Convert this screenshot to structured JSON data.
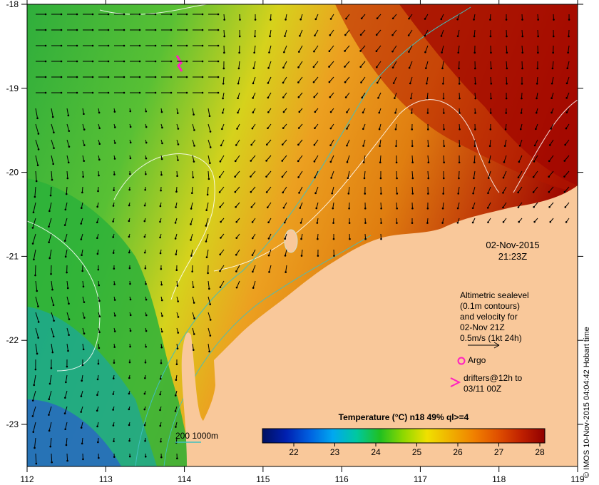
{
  "map": {
    "x_ticks": [
      "112",
      "113",
      "114",
      "115",
      "116",
      "117",
      "118",
      "119"
    ],
    "y_ticks": [
      "-18",
      "-19",
      "-20",
      "-21",
      "-22",
      "-23"
    ]
  },
  "annotations": {
    "date_line1": "02-Nov-2015",
    "date_line2": "21:23Z",
    "legend_lines": [
      "Altimetric sealevel",
      "(0.1m contours)",
      "and velocity for",
      "02-Nov 21Z",
      "0.5m/s (1kt 24h)"
    ],
    "argo_label": "Argo",
    "drifters_line1": "drifters@12h to",
    "drifters_line2": "03/11 00Z",
    "depth_legend": "200  1000m"
  },
  "colorbar": {
    "title": "Temperature (°C) n18 49% ql>=4",
    "ticks": [
      "22",
      "23",
      "24",
      "25",
      "26",
      "27",
      "28"
    ],
    "colors": [
      "#001060",
      "#0020b0",
      "#0060e0",
      "#00a8f0",
      "#00c8a0",
      "#20c020",
      "#90d800",
      "#f0e000",
      "#f0b000",
      "#f08000",
      "#e05000",
      "#c02000",
      "#900000"
    ]
  },
  "credit": "© IMOS 10-Nov-2015 04:04:42 Hobart time",
  "colors": {
    "land": "#f9c89a",
    "isobath": "#40c0c0",
    "sealevel_contour": "#ffffff",
    "argo_marker": "#ff20c0"
  }
}
